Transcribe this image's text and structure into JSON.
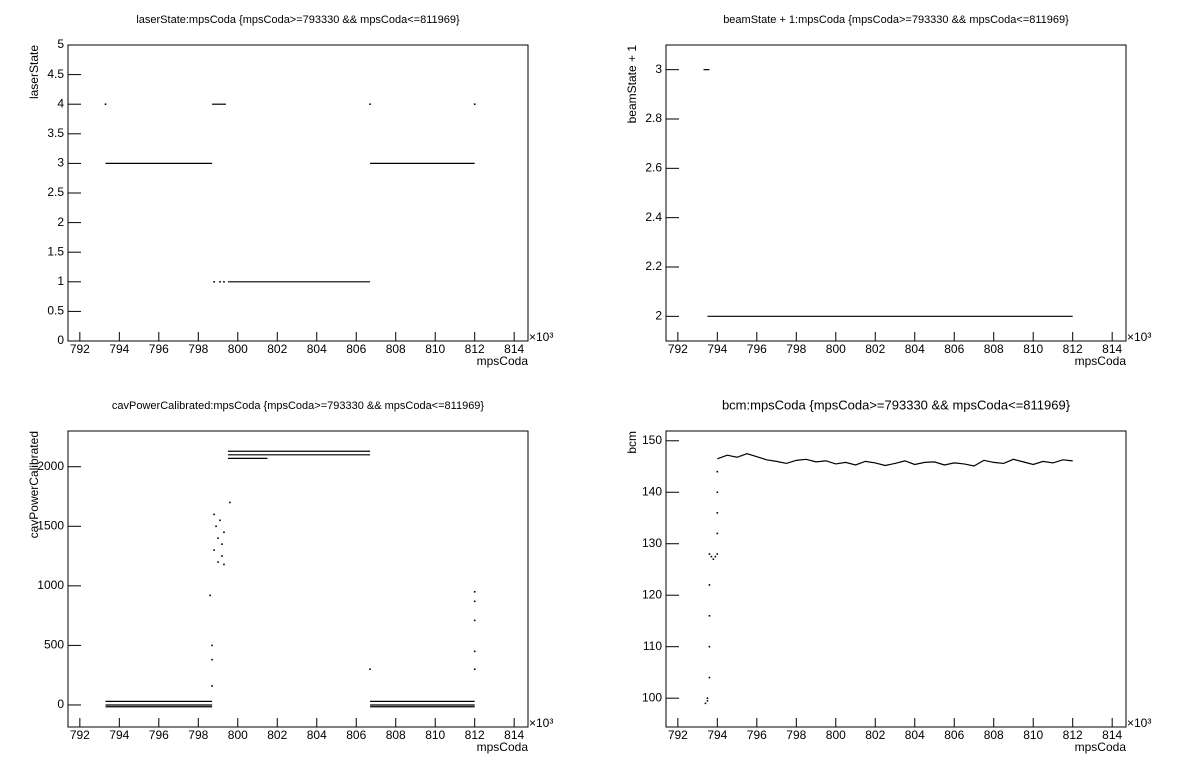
{
  "chart_data": [
    {
      "type": "scatter",
      "title": "laserState:mpsCoda {mpsCoda>=793330 && mpsCoda<=811969}",
      "x_label": "mpsCoda",
      "y_label": "laserState",
      "x_multiplier": "×10³",
      "xlim": [
        791.4,
        814.7
      ],
      "xticks": [
        792,
        794,
        796,
        798,
        800,
        802,
        804,
        806,
        808,
        810,
        812,
        814
      ],
      "ylim": [
        0,
        5
      ],
      "yticks": [
        0,
        0.5,
        1,
        1.5,
        2,
        2.5,
        3,
        3.5,
        4,
        4.5,
        5
      ],
      "runs": [
        {
          "x0": 793.3,
          "x1": 798.7,
          "y": 3
        },
        {
          "x0": 798.7,
          "x1": 799.4,
          "y": 4
        },
        {
          "x0": 799.5,
          "x1": 806.7,
          "y": 1
        },
        {
          "x0": 806.7,
          "x1": 812.0,
          "y": 3
        }
      ],
      "points": {
        "x": [
          793.3,
          806.7,
          812.0,
          798.8,
          799.1,
          799.3
        ],
        "y": [
          4,
          4,
          4,
          1,
          1,
          1
        ]
      }
    },
    {
      "type": "scatter",
      "title": "beamState + 1:mpsCoda {mpsCoda>=793330 && mpsCoda<=811969}",
      "x_label": "mpsCoda",
      "y_label": "beamState + 1",
      "x_multiplier": "×10³",
      "xlim": [
        791.4,
        814.7
      ],
      "xticks": [
        792,
        794,
        796,
        798,
        800,
        802,
        804,
        806,
        808,
        810,
        812,
        814
      ],
      "ylim": [
        1.9,
        3.1
      ],
      "yticks": [
        2,
        2.2,
        2.4,
        2.6,
        2.8,
        3
      ],
      "runs": [
        {
          "x0": 793.3,
          "x1": 793.6,
          "y": 3
        },
        {
          "x0": 793.5,
          "x1": 812.0,
          "y": 2
        }
      ],
      "points": {
        "x": [],
        "y": []
      }
    },
    {
      "type": "scatter",
      "title": "cavPowerCalibrated:mpsCoda {mpsCoda>=793330 && mpsCoda<=811969}",
      "x_label": "mpsCoda",
      "y_label": "cavPowerCalibrated",
      "x_multiplier": "×10³",
      "xlim": [
        791.4,
        814.7
      ],
      "xticks": [
        792,
        794,
        796,
        798,
        800,
        802,
        804,
        806,
        808,
        810,
        812,
        814
      ],
      "ylim": [
        -185,
        2300
      ],
      "yticks": [
        0,
        500,
        1000,
        1500,
        2000
      ],
      "runs": [
        {
          "x0": 793.3,
          "x1": 798.7,
          "y": 30
        },
        {
          "x0": 793.3,
          "x1": 798.7,
          "y": 0
        },
        {
          "x0": 793.3,
          "x1": 798.7,
          "y": -15
        },
        {
          "x0": 799.5,
          "x1": 806.7,
          "y": 2130
        },
        {
          "x0": 799.5,
          "x1": 806.7,
          "y": 2100
        },
        {
          "x0": 799.5,
          "x1": 801.5,
          "y": 2070
        },
        {
          "x0": 806.7,
          "x1": 812.0,
          "y": 30
        },
        {
          "x0": 806.7,
          "x1": 812.0,
          "y": 0
        },
        {
          "x0": 806.7,
          "x1": 812.0,
          "y": -15
        }
      ],
      "points": {
        "x": [
          798.8,
          798.8,
          798.9,
          799.0,
          799.0,
          799.1,
          799.2,
          799.2,
          799.3,
          799.3,
          798.6,
          798.7,
          798.7,
          798.7,
          799.6,
          806.7,
          812.0,
          812.0,
          812.0,
          812.0,
          812.0
        ],
        "y": [
          1600,
          1300,
          1500,
          1400,
          1200,
          1550,
          1350,
          1250,
          1450,
          1180,
          920,
          500,
          380,
          160,
          1700,
          300,
          950,
          870,
          710,
          450,
          300
        ]
      }
    },
    {
      "type": "scatter",
      "title": "bcm:mpsCoda {mpsCoda>=793330 && mpsCoda<=811969}",
      "x_label": "mpsCoda",
      "y_label": "bcm",
      "x_multiplier": "×10³",
      "xlim": [
        791.4,
        814.7
      ],
      "xticks": [
        792,
        794,
        796,
        798,
        800,
        802,
        804,
        806,
        808,
        810,
        812,
        814
      ],
      "ylim": [
        94.4,
        151.9
      ],
      "yticks": [
        100,
        110,
        120,
        130,
        140,
        150
      ],
      "runs": [],
      "points": {
        "x": [
          793.4,
          793.5,
          793.5,
          793.6,
          793.6,
          793.6,
          793.6,
          793.6,
          793.7,
          793.8,
          793.9,
          794.0,
          794.0,
          794.0,
          794.0,
          794.0
        ],
        "y": [
          99,
          99.5,
          100,
          104,
          110,
          116,
          122,
          128,
          127.5,
          127,
          127.5,
          128,
          132,
          136,
          140,
          144
        ]
      },
      "line": {
        "x": [
          794.0,
          794.5,
          795.0,
          795.5,
          796.0,
          796.5,
          797.0,
          797.5,
          798.0,
          798.5,
          799.0,
          799.5,
          800.0,
          800.5,
          801.0,
          801.5,
          802.0,
          802.5,
          803.0,
          803.5,
          804.0,
          804.5,
          805.0,
          805.5,
          806.0,
          806.5,
          807.0,
          807.5,
          808.0,
          808.5,
          809.0,
          809.5,
          810.0,
          810.5,
          811.0,
          811.5,
          812.0
        ],
        "values": [
          146.5,
          147.2,
          146.8,
          147.5,
          146.9,
          146.3,
          146.0,
          145.6,
          146.2,
          146.4,
          145.9,
          146.1,
          145.5,
          145.8,
          145.3,
          146.0,
          145.7,
          145.2,
          145.6,
          146.1,
          145.4,
          145.8,
          145.9,
          145.3,
          145.7,
          145.5,
          145.1,
          146.2,
          145.8,
          145.6,
          146.4,
          145.9,
          145.4,
          146.0,
          145.7,
          146.3,
          146.1
        ]
      }
    }
  ]
}
